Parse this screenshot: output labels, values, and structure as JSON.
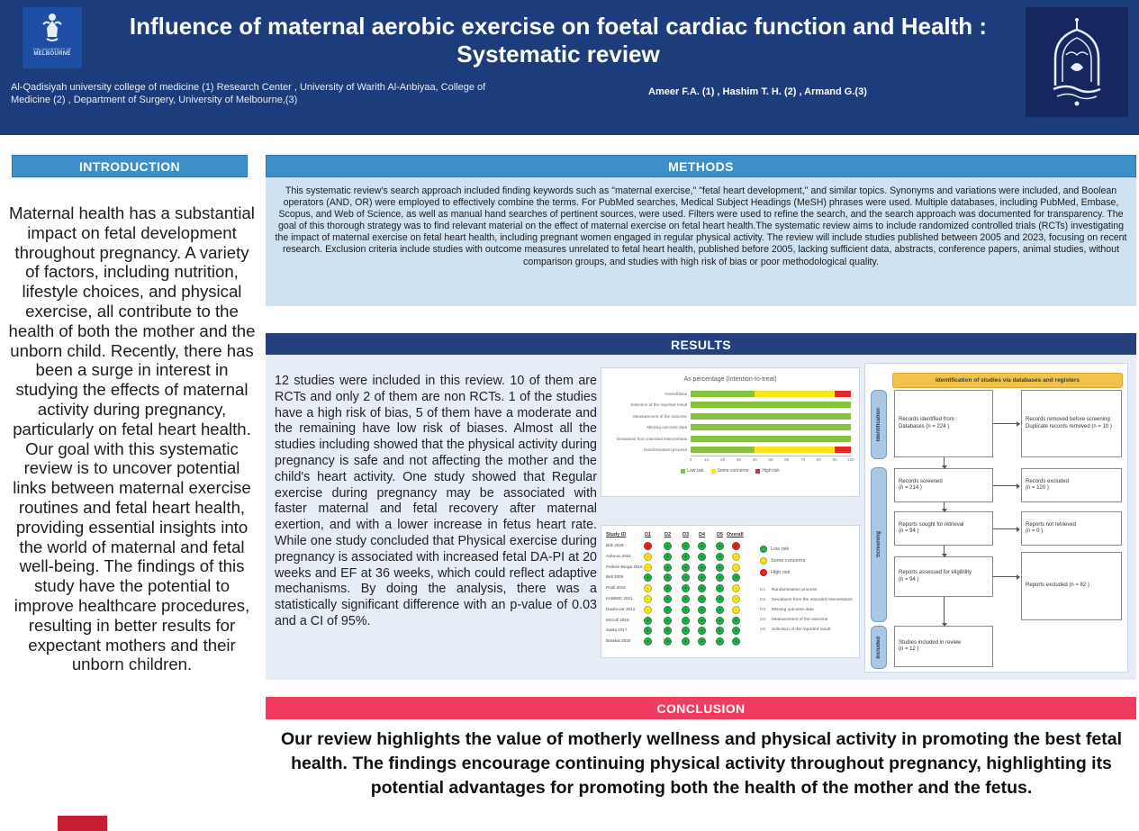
{
  "header": {
    "title": "Influence of maternal aerobic exercise on foetal cardiac function and Health :\nSystematic review",
    "affiliations": "Al-Qadisiyah university college of medicine (1)  Research Center , University of Warith Al-Anbiyaa, College of Medicine (2) ,  Department of Surgery, University of Melbourne,(3)",
    "authors": "Ameer F.A. (1) , Hashim T. H. (2)  , Armand G.(3)",
    "left_logo": {
      "icon": "university-of-melbourne-logo",
      "caption_top": "THE UNIVERSITY OF",
      "caption_bottom": "MELBOURNE"
    },
    "right_logo": {
      "icon": "university-of-warith-al-anbiyaa-logo"
    }
  },
  "sections": {
    "introduction": {
      "heading": "INTRODUCTION",
      "body": "Maternal health has a substantial impact on fetal development throughout pregnancy. A variety of factors, including nutrition, lifestyle choices, and physical exercise, all contribute to the health of both the mother and the unborn child. Recently, there has been a surge in interest in studying the effects of maternal activity during pregnancy, particularly on fetal heart health. Our goal with this systematic review is to uncover potential links between maternal exercise routines and fetal heart health, providing essential insights into the world of maternal and fetal well-being. The findings of this study have the potential to improve healthcare procedures, resulting in better results for expectant mothers and their unborn children."
    },
    "methods": {
      "heading": "METHODS",
      "body": "This systematic review's search approach included finding keywords such as \"maternal exercise,\" \"fetal heart development,\" and similar topics. Synonyms and variations were included, and Boolean operators (AND, OR) were employed to effectively combine the terms. For PubMed searches, Medical Subject Headings (MeSH) phrases were used. Multiple databases, including PubMed, Embase, Scopus, and Web of Science, as well as manual hand searches of pertinent sources, were used. Filters were used to refine the search, and the search approach was documented for transparency. The goal of this thorough strategy was to find relevant material on the effect of maternal exercise on fetal heart health.The systematic review aims to include randomized controlled trials (RCTs) investigating the impact of maternal exercise on fetal heart health, including pregnant women engaged in regular physical activity. The review will include studies published between 2005 and 2023, focusing on recent research. Exclusion criteria include studies with outcome measures unrelated to fetal heart health, published before 2005, lacking sufficient data, abstracts, conference papers, animal studies, without comparison groups, and studies with high risk of bias or poor methodological quality."
    },
    "results": {
      "heading": "RESULTS",
      "body": "12 studies were included in this review. 10 of them are RCTs and only 2 of them are non RCTs. 1 of the studies have a high risk of bias, 5 of them have a moderate and the remaining have low risk of biases. Almost all the studies including showed that the physical activity during pregnancy is safe and not affecting the mother and the child's heart activity. One study showed that Regular exercise during pregnancy may be associated with faster maternal and fetal recovery after maternal exertion, and with a lower increase in fetus heart rate. While one study concluded that Physical exercise during pregnancy is associated with increased fetal DA-PI at 20 weeks and EF at 36 weeks, which could reflect adaptive mechanisms. By doing the analysis, there was a statistically significant difference with an p-value of 0.03 and a CI of 95%."
    },
    "conclusion": {
      "heading": "CONCLUSION",
      "body": "Our review highlights the value of motherly wellness and physical activity in promoting the best fetal health. The findings encourage continuing physical activity throughout pregnancy, highlighting its potential advantages for promoting both the health of the mother and the fetus."
    }
  },
  "colors": {
    "header_bg": "#1d3c7c",
    "section_blue": "#3e8ec8",
    "results_navy": "#25417d",
    "conclusion_pink": "#f13c5f",
    "low_risk_green": "#86c440",
    "some_concerns_yellow": "#f7e71c",
    "high_risk_red": "#e8252a"
  },
  "chart_data": [
    {
      "type": "bar",
      "variant": "stacked-horizontal-percentage",
      "title": "As percentage (Intention-to-treat)",
      "categories": [
        "Overall Bias",
        "Selection of the reported result",
        "Measurement of the outcome",
        "Missing outcome data",
        "Deviations from intended interventions",
        "Randomisation process"
      ],
      "series": [
        {
          "name": "Low risk",
          "color": "#86c440",
          "values": [
            40,
            100,
            100,
            100,
            100,
            40
          ]
        },
        {
          "name": "Some concerns",
          "color": "#f7e71c",
          "values": [
            50,
            0,
            0,
            0,
            0,
            50
          ]
        },
        {
          "name": "High risk",
          "color": "#e8252a",
          "values": [
            10,
            0,
            0,
            0,
            0,
            10
          ]
        }
      ],
      "xlim": [
        0,
        100
      ],
      "xticks": [
        0,
        10,
        20,
        30,
        40,
        50,
        60,
        70,
        80,
        90,
        100
      ],
      "legend_position": "bottom",
      "grid": false
    },
    {
      "type": "heatmap",
      "variant": "risk-of-bias-traffic-light",
      "columns": [
        "Study ID",
        "D1",
        "D2",
        "D3",
        "D4",
        "D5",
        "Overall"
      ],
      "rows": [
        {
          "study": "Brik 2020",
          "ratings": [
            "high",
            "low",
            "low",
            "low",
            "low",
            "high"
          ]
        },
        {
          "study": "Avila-ao 2021",
          "ratings": [
            "some",
            "low",
            "low",
            "low",
            "low",
            "some"
          ]
        },
        {
          "study": "Perkins-Burga 2019",
          "ratings": [
            "some",
            "low",
            "low",
            "low",
            "low",
            "some"
          ]
        },
        {
          "study": "Bell 2009",
          "ratings": [
            "low",
            "low",
            "low",
            "low",
            "low",
            "low"
          ]
        },
        {
          "study": "Prioli 2016",
          "ratings": [
            "some",
            "low",
            "low",
            "low",
            "low",
            "some"
          ]
        },
        {
          "study": "KrisBMC 2011",
          "ratings": [
            "some",
            "low",
            "low",
            "low",
            "low",
            "some"
          ]
        },
        {
          "study": "Davila-ver 2014",
          "ratings": [
            "some",
            "low",
            "low",
            "low",
            "low",
            "some"
          ]
        },
        {
          "study": "McColl 2016",
          "ratings": [
            "low",
            "low",
            "low",
            "low",
            "low",
            "low"
          ]
        },
        {
          "study": "Santa 2017",
          "ratings": [
            "low",
            "low",
            "low",
            "low",
            "low",
            "low"
          ]
        },
        {
          "study": "Barakat 2020",
          "ratings": [
            "low",
            "low",
            "low",
            "low",
            "low",
            "low"
          ]
        }
      ],
      "rating_colors": {
        "low": "#22b14c",
        "some": "#f7e71c",
        "high": "#e8252a"
      },
      "rating_symbols": {
        "low": "+",
        "some": "-",
        "high": "x"
      },
      "legend": [
        {
          "rating": "low",
          "label": "Low risk"
        },
        {
          "rating": "some",
          "label": "Some concerns"
        },
        {
          "rating": "high",
          "label": "High risk"
        }
      ],
      "domains": [
        {
          "id": "D1",
          "label": "Randomisation process"
        },
        {
          "id": "D2",
          "label": "Deviations from the intended interventions"
        },
        {
          "id": "D3",
          "label": "Missing outcome data"
        },
        {
          "id": "D4",
          "label": "Measurement of the outcome"
        },
        {
          "id": "D5",
          "label": "Selection of the reported result"
        }
      ]
    },
    {
      "type": "diagram",
      "variant": "prisma-flow",
      "banner": "Identification of studies via databases and registers",
      "side_labels": {
        "identification": "Identification",
        "screening": "Screening",
        "included": "Included"
      },
      "boxes": {
        "records_identified": "Records identified from :\nDatabases (n = 224 )",
        "records_removed": "Records removed before screening:\nDuplicate records removed  (n = 10 )",
        "records_screened": "Records screened\n(n = 214 )",
        "records_excluded": "Records excluded\n(n = 120 )",
        "reports_sought": "Reports sought for retrieval\n(n = 94 )",
        "reports_not_retrieved": "Reports not retrieved\n(n = 0 )",
        "reports_assessed": "Reports assessed for eligibility\n(n = 94 )",
        "reports_excluded": "Reports excluded (n = 82 )",
        "studies_included": "Studies included in review\n(n = 12 )"
      }
    }
  ]
}
